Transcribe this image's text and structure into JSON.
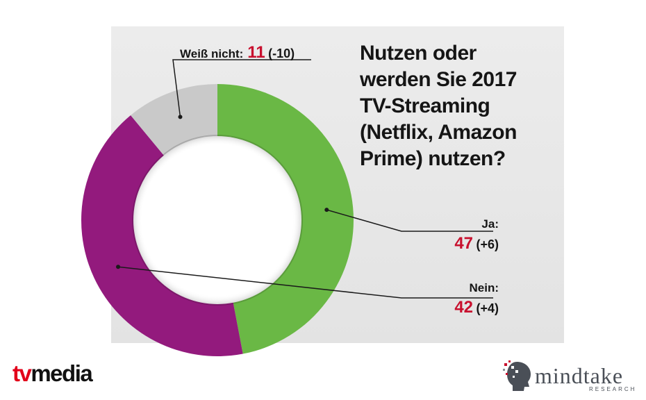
{
  "chart_data": {
    "type": "pie",
    "title_lines": [
      "Nutzen oder",
      "werden Sie 2017",
      "TV-Streaming",
      "(Netflix, Amazon",
      "Prime) nutzen?"
    ],
    "slices": [
      {
        "label": "Ja:",
        "value": 47,
        "change": "(+6)",
        "color": "#6ab845"
      },
      {
        "label": "Nein:",
        "value": 42,
        "change": "(+4)",
        "color": "#931a7d"
      },
      {
        "label": "Weiß nicht:",
        "value": 11,
        "change": "(-10)",
        "color": "#c9c9c9"
      }
    ]
  },
  "branding": {
    "tv_logo_tv": "tv",
    "tv_logo_media": "media",
    "mindtake_word": "mindtake",
    "mindtake_sub": "RESEARCH"
  }
}
